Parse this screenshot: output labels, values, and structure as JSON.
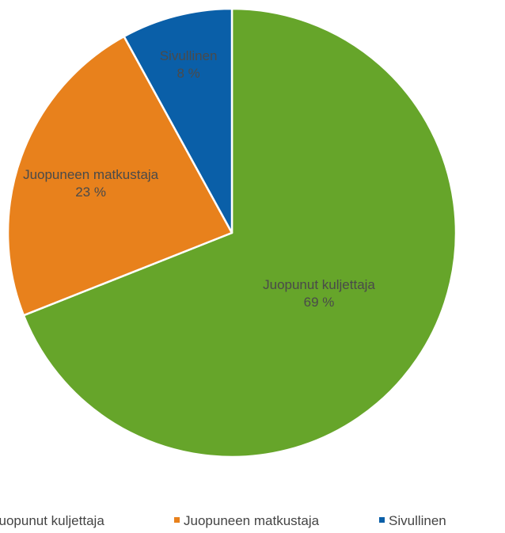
{
  "chart_data": {
    "type": "pie",
    "title": "",
    "slices": [
      {
        "label": "Juopunut kuljettaja",
        "value": 69,
        "value_label": "69 %",
        "color": "#66a52a"
      },
      {
        "label": "Juopuneen matkustaja",
        "value": 23,
        "value_label": "23 %",
        "color": "#e8811c"
      },
      {
        "label": "Sivullinen",
        "value": 8,
        "value_label": "8 %",
        "color": "#0a5fa8"
      }
    ],
    "legend_position": "bottom"
  }
}
